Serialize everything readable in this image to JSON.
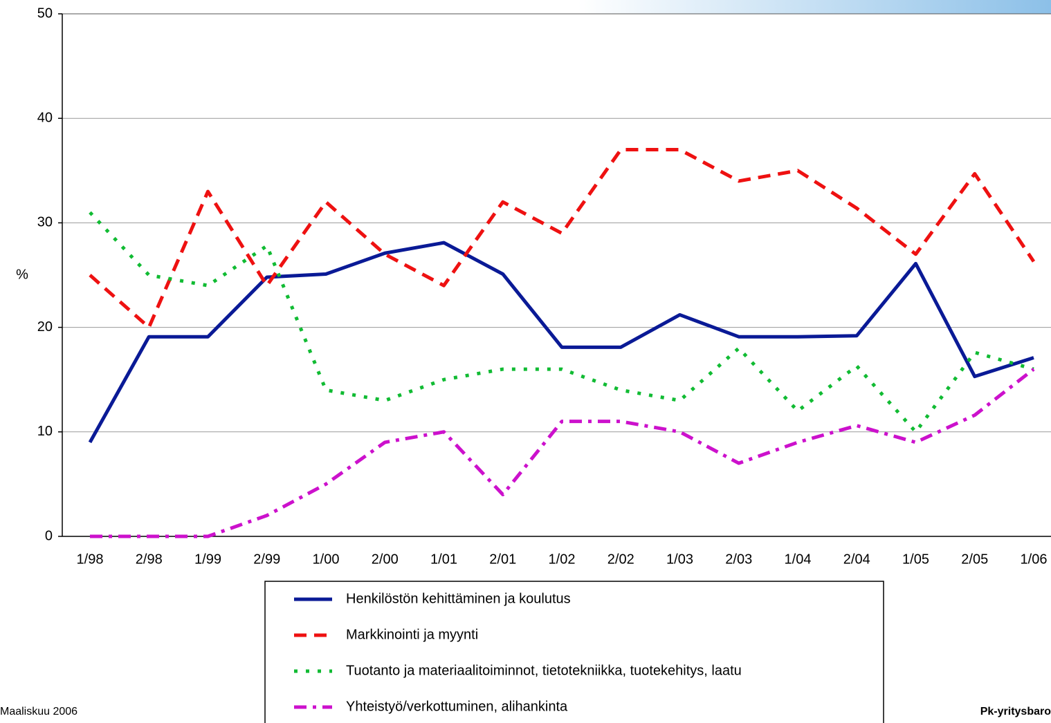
{
  "chart_data": {
    "type": "line",
    "y_label": "%",
    "categories": [
      "1/98",
      "2/98",
      "1/99",
      "2/99",
      "1/00",
      "2/00",
      "1/01",
      "2/01",
      "1/02",
      "2/02",
      "1/03",
      "2/03",
      "1/04",
      "2/04",
      "1/05",
      "2/05",
      "1/06"
    ],
    "series": [
      {
        "name": "Henkilöstön kehittäminen ja koulutus",
        "color": "#0a1a96",
        "dash": "solid",
        "values": [
          9,
          19.1,
          19.1,
          24.8,
          25.1,
          27.1,
          28.1,
          25.1,
          18.1,
          18.1,
          21.2,
          19.1,
          19.1,
          19.2,
          26.1,
          15.3,
          17.1
        ]
      },
      {
        "name": "Markkinointi ja myynti",
        "color": "#ee1111",
        "dash": "dashed",
        "values": [
          25,
          20,
          33,
          24,
          32,
          27,
          24,
          32,
          29,
          37,
          37,
          34,
          35,
          31.4,
          27,
          34.7,
          26.3
        ]
      },
      {
        "name": "Tuotanto ja materiaalitoiminnot, tietotekniikka, tuotekehitys, laatu",
        "color": "#11bb33",
        "dash": "dotted",
        "values": [
          31,
          25,
          24,
          27.8,
          14,
          13,
          15,
          16,
          16,
          14,
          13,
          18,
          12,
          16.3,
          10,
          17.6,
          16
        ]
      },
      {
        "name": "Yhteistyö/verkottuminen, alihankinta",
        "color": "#cc11cc",
        "dash": "dashdot",
        "values": [
          0,
          0,
          0,
          2,
          5,
          9,
          10,
          4,
          11,
          11,
          10,
          7,
          9,
          10.6,
          9,
          11.6,
          16
        ]
      }
    ],
    "ylim": [
      0,
      50
    ],
    "yticks": [
      0,
      10,
      20,
      30,
      40,
      50
    ],
    "grid": true,
    "footer_left": "Maaliskuu 2006",
    "footer_right": "Pk-yritysbaro"
  }
}
